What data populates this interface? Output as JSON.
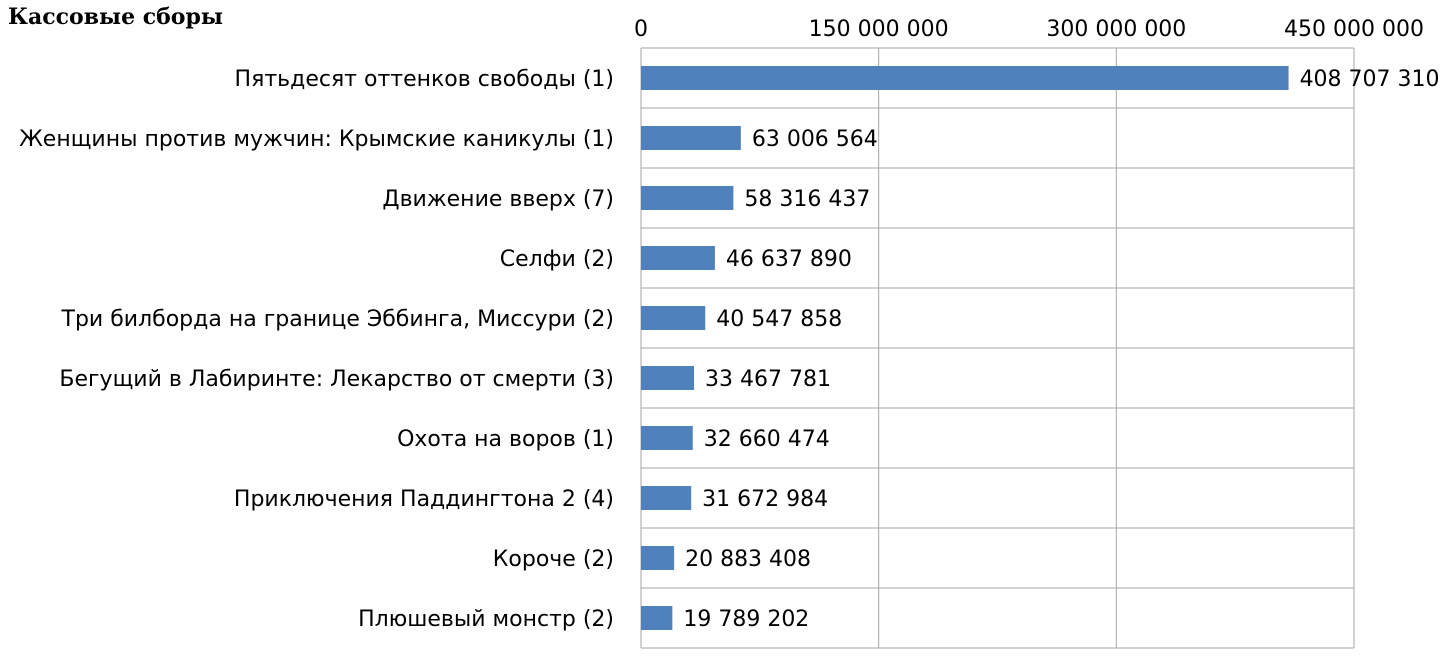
{
  "chart_data": {
    "type": "bar",
    "orientation": "horizontal",
    "title": "Кассовые сборы",
    "categories": [
      "Пятьдесят оттенков свободы (1)",
      "Женщины против мужчин: Крымские каникулы (1)",
      "Движение вверх (7)",
      "Селфи (2)",
      "Три билборда на границе Эббинга, Миссури (2)",
      "Бегущий в Лабиринте: Лекарство от смерти (3)",
      "Охота на воров (1)",
      "Приключения Паддингтона 2 (4)",
      "Короче (2)",
      "Плюшевый монстр (2)"
    ],
    "values": [
      408707310,
      63006564,
      58316437,
      46637890,
      40547858,
      33467781,
      32660474,
      31672984,
      20883408,
      19789202
    ],
    "value_labels": [
      "408 707 310",
      "63 006 564",
      "58 316 437",
      "46 637 890",
      "40 547 858",
      "33 467 781",
      "32 660 474",
      "31 672 984",
      "20 883 408",
      "19 789 202"
    ],
    "x_ticks": [
      0,
      150000000,
      300000000,
      450000000
    ],
    "x_tick_labels": [
      "0",
      "150 000 000",
      "300 000 000",
      "450 000 000"
    ],
    "xlim": [
      0,
      450000000
    ],
    "x_axis_position": "top",
    "grid": true,
    "legend": "none",
    "bar_color": "#4F81BD",
    "grid_color": "#A6A6A6"
  }
}
